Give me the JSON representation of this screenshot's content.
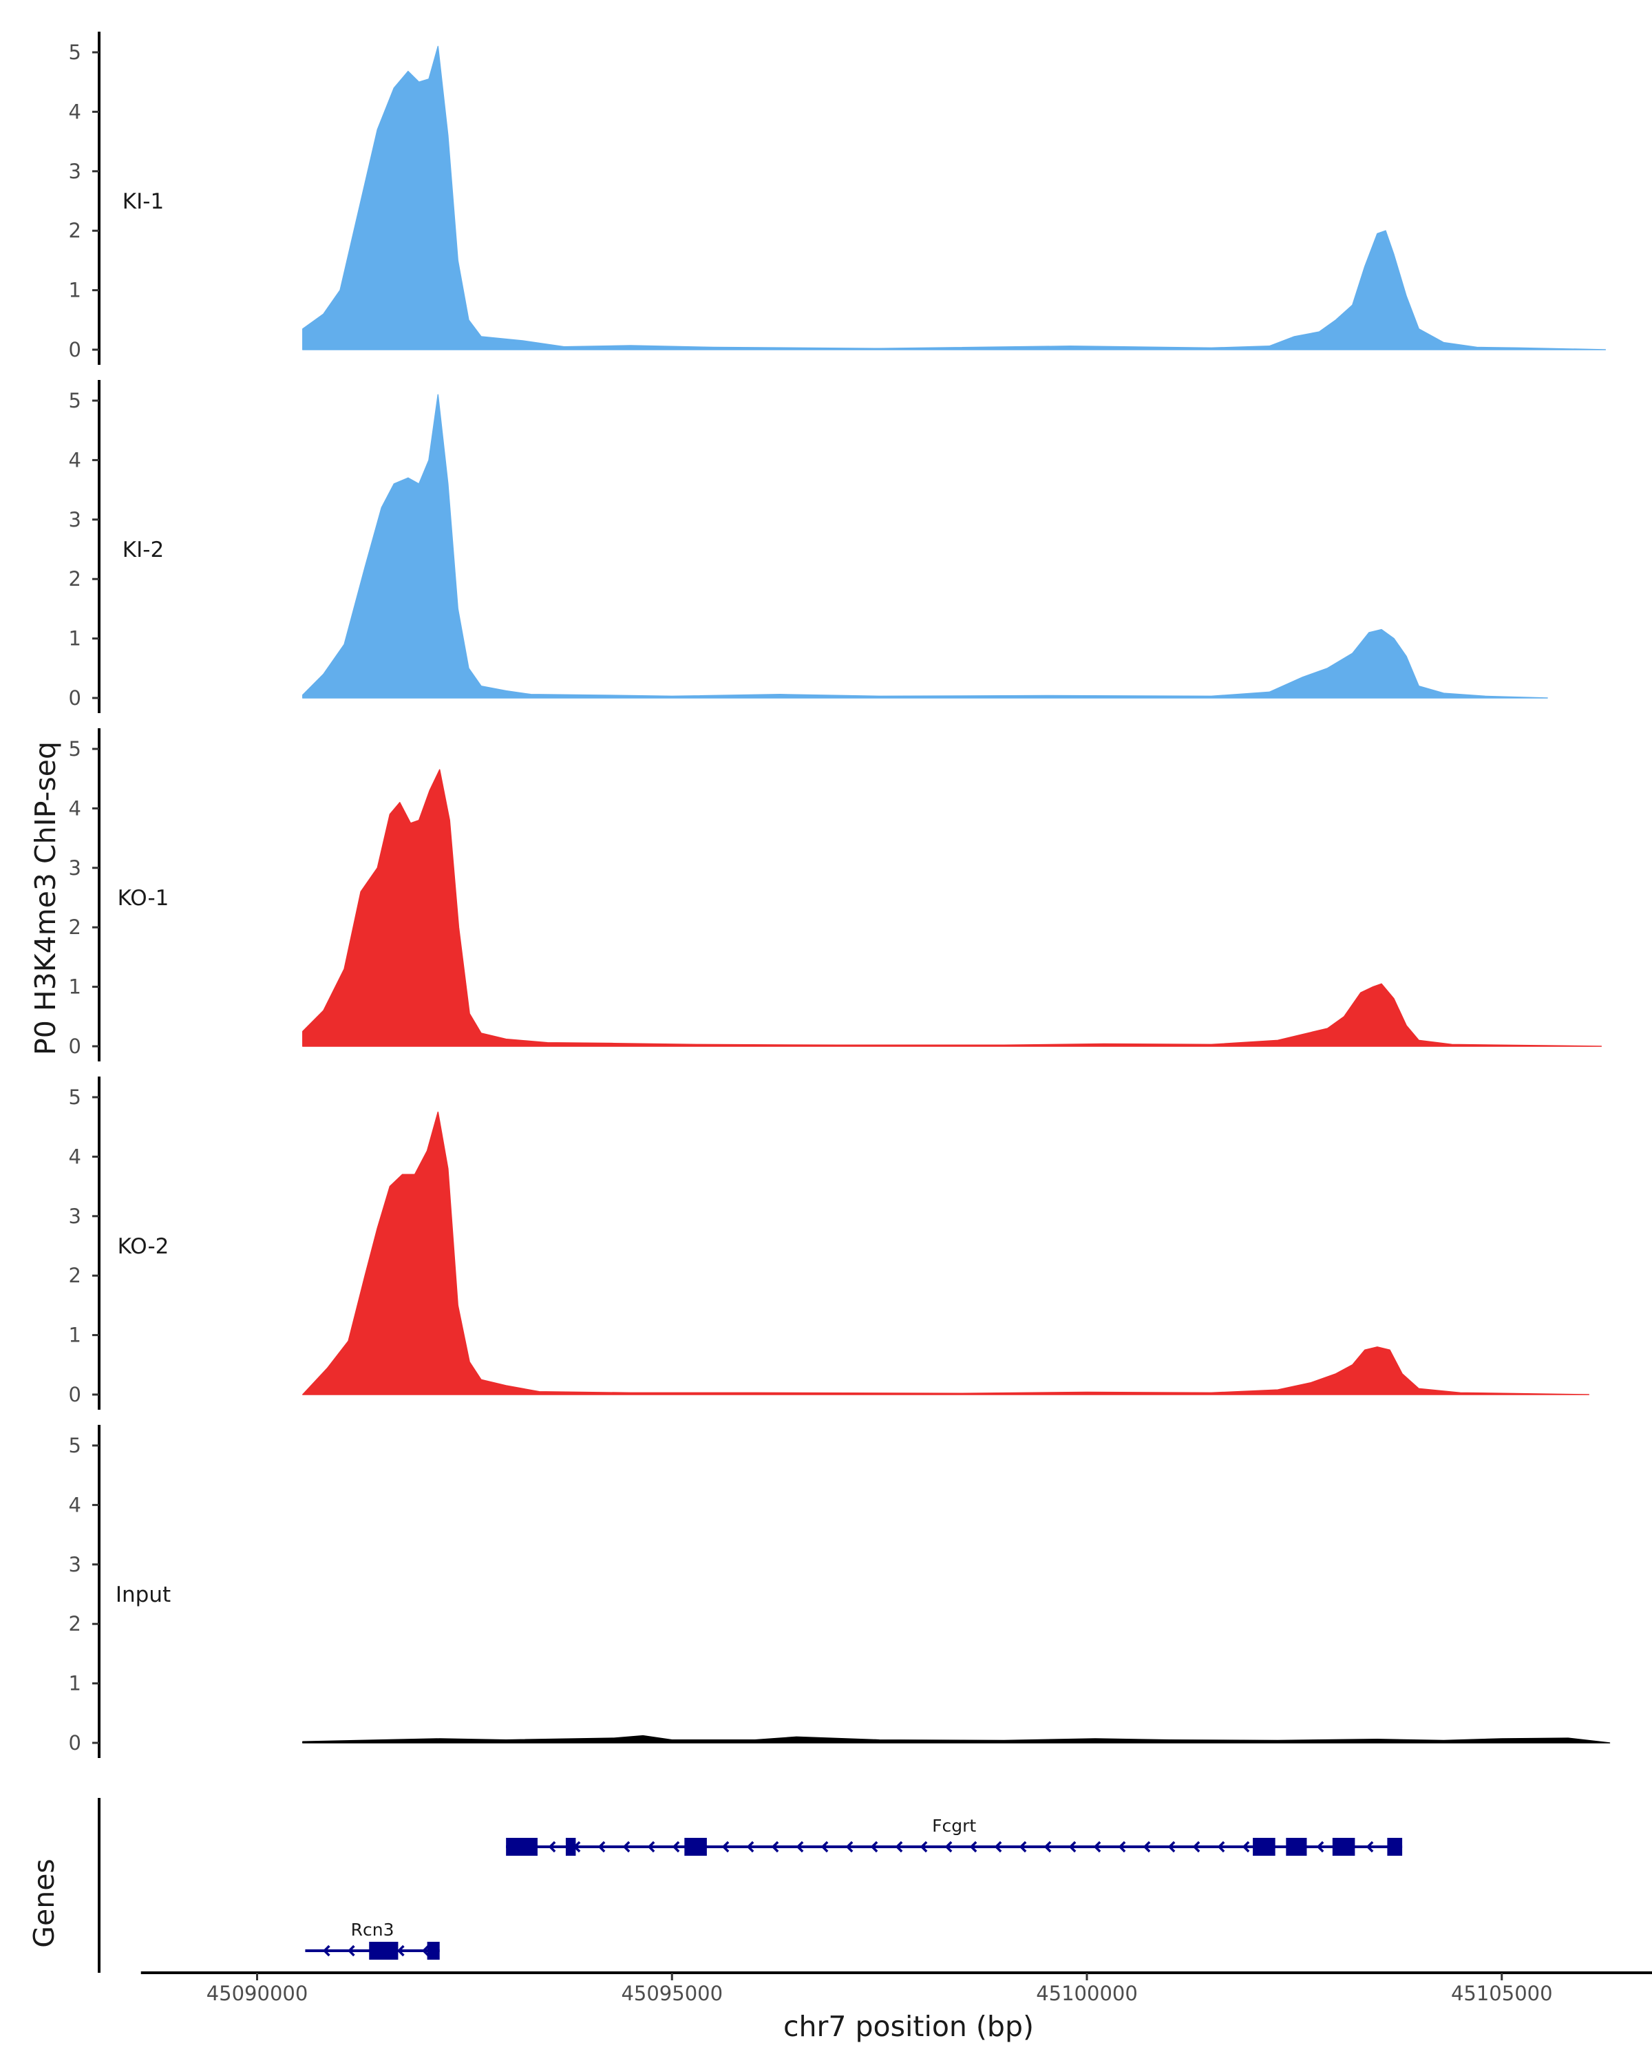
{
  "chart_data": {
    "type": "area",
    "ylabel": "P0 H3K4me3 ChIP-seq",
    "xlabel": "chr7 position (bp)",
    "genes_label": "Genes",
    "xlim": [
      45088600,
      45107000
    ],
    "ylim": [
      0,
      5.35
    ],
    "x_ticks": [
      45090000,
      45095000,
      45100000,
      45105000
    ],
    "x_tick_labels": [
      "45090000",
      "45095000",
      "45100000",
      "45105000"
    ],
    "y_ticks": [
      0,
      1,
      2,
      3,
      4,
      5
    ],
    "y_tick_labels": [
      "0",
      "1",
      "2",
      "3",
      "4",
      "5"
    ],
    "colors": {
      "KI": "#62aeec",
      "KO": "#ec2c2c",
      "Input": "#000000",
      "gene": "#00008b",
      "axis": "#000000"
    },
    "tracks": [
      {
        "name": "KI-1",
        "color": "#62aeec",
        "x_range": [
          45090550,
          45106250
        ],
        "points": [
          [
            45090550,
            0.35
          ],
          [
            45090800,
            0.6
          ],
          [
            45091000,
            1.0
          ],
          [
            45091250,
            2.5
          ],
          [
            45091450,
            3.7
          ],
          [
            45091650,
            4.4
          ],
          [
            45091820,
            4.68
          ],
          [
            45091950,
            4.5
          ],
          [
            45092070,
            4.55
          ],
          [
            45092180,
            5.1
          ],
          [
            45092300,
            3.6
          ],
          [
            45092420,
            1.5
          ],
          [
            45092550,
            0.5
          ],
          [
            45092700,
            0.22
          ],
          [
            45093200,
            0.15
          ],
          [
            45093700,
            0.05
          ],
          [
            45094500,
            0.07
          ],
          [
            45095500,
            0.04
          ],
          [
            45097500,
            0.02
          ],
          [
            45099800,
            0.06
          ],
          [
            45101500,
            0.03
          ],
          [
            45102200,
            0.06
          ],
          [
            45102500,
            0.22
          ],
          [
            45102800,
            0.3
          ],
          [
            45103000,
            0.5
          ],
          [
            45103200,
            0.75
          ],
          [
            45103350,
            1.4
          ],
          [
            45103500,
            1.95
          ],
          [
            45103600,
            2.0
          ],
          [
            45103700,
            1.6
          ],
          [
            45103850,
            0.9
          ],
          [
            45104000,
            0.35
          ],
          [
            45104300,
            0.12
          ],
          [
            45104700,
            0.04
          ],
          [
            45105200,
            0.03
          ],
          [
            45106250,
            0.0
          ]
        ]
      },
      {
        "name": "KI-2",
        "color": "#62aeec",
        "x_range": [
          45090550,
          45105550
        ],
        "points": [
          [
            45090550,
            0.05
          ],
          [
            45090800,
            0.4
          ],
          [
            45091050,
            0.9
          ],
          [
            45091300,
            2.2
          ],
          [
            45091500,
            3.2
          ],
          [
            45091650,
            3.6
          ],
          [
            45091820,
            3.7
          ],
          [
            45091950,
            3.6
          ],
          [
            45092070,
            4.0
          ],
          [
            45092180,
            5.1
          ],
          [
            45092300,
            3.6
          ],
          [
            45092420,
            1.5
          ],
          [
            45092550,
            0.5
          ],
          [
            45092700,
            0.2
          ],
          [
            45093000,
            0.12
          ],
          [
            45093300,
            0.06
          ],
          [
            45094000,
            0.05
          ],
          [
            45095000,
            0.03
          ],
          [
            45096300,
            0.06
          ],
          [
            45097500,
            0.03
          ],
          [
            45099500,
            0.04
          ],
          [
            45101500,
            0.03
          ],
          [
            45102200,
            0.1
          ],
          [
            45102600,
            0.35
          ],
          [
            45102900,
            0.5
          ],
          [
            45103200,
            0.75
          ],
          [
            45103400,
            1.1
          ],
          [
            45103550,
            1.15
          ],
          [
            45103700,
            1.0
          ],
          [
            45103850,
            0.7
          ],
          [
            45104000,
            0.2
          ],
          [
            45104300,
            0.08
          ],
          [
            45104800,
            0.03
          ],
          [
            45105550,
            0.0
          ]
        ]
      },
      {
        "name": "KO-1",
        "color": "#ec2c2c",
        "x_range": [
          45090550,
          45106200
        ],
        "points": [
          [
            45090550,
            0.25
          ],
          [
            45090800,
            0.6
          ],
          [
            45091050,
            1.3
          ],
          [
            45091250,
            2.6
          ],
          [
            45091450,
            3.0
          ],
          [
            45091600,
            3.9
          ],
          [
            45091720,
            4.1
          ],
          [
            45091850,
            3.75
          ],
          [
            45091950,
            3.8
          ],
          [
            45092080,
            4.3
          ],
          [
            45092200,
            4.65
          ],
          [
            45092320,
            3.8
          ],
          [
            45092430,
            2.0
          ],
          [
            45092560,
            0.55
          ],
          [
            45092700,
            0.22
          ],
          [
            45093000,
            0.12
          ],
          [
            45093500,
            0.06
          ],
          [
            45094300,
            0.05
          ],
          [
            45095300,
            0.03
          ],
          [
            45097000,
            0.02
          ],
          [
            45099000,
            0.02
          ],
          [
            45100200,
            0.04
          ],
          [
            45101500,
            0.03
          ],
          [
            45102300,
            0.1
          ],
          [
            45102600,
            0.2
          ],
          [
            45102900,
            0.3
          ],
          [
            45103100,
            0.5
          ],
          [
            45103300,
            0.9
          ],
          [
            45103450,
            1.0
          ],
          [
            45103550,
            1.05
          ],
          [
            45103700,
            0.8
          ],
          [
            45103850,
            0.35
          ],
          [
            45104000,
            0.1
          ],
          [
            45104400,
            0.03
          ],
          [
            45106200,
            0.0
          ]
        ]
      },
      {
        "name": "KO-2",
        "color": "#ec2c2c",
        "x_range": [
          45090550,
          45106050
        ],
        "points": [
          [
            45090550,
            0.0
          ],
          [
            45090850,
            0.45
          ],
          [
            45091100,
            0.9
          ],
          [
            45091300,
            2.0
          ],
          [
            45091450,
            2.8
          ],
          [
            45091600,
            3.5
          ],
          [
            45091750,
            3.7
          ],
          [
            45091900,
            3.7
          ],
          [
            45092050,
            4.1
          ],
          [
            45092180,
            4.75
          ],
          [
            45092300,
            3.8
          ],
          [
            45092420,
            1.5
          ],
          [
            45092560,
            0.55
          ],
          [
            45092700,
            0.25
          ],
          [
            45093000,
            0.15
          ],
          [
            45093400,
            0.05
          ],
          [
            45094500,
            0.03
          ],
          [
            45096000,
            0.03
          ],
          [
            45098500,
            0.02
          ],
          [
            45100000,
            0.04
          ],
          [
            45101500,
            0.03
          ],
          [
            45102300,
            0.08
          ],
          [
            45102700,
            0.2
          ],
          [
            45103000,
            0.35
          ],
          [
            45103200,
            0.5
          ],
          [
            45103350,
            0.75
          ],
          [
            45103500,
            0.8
          ],
          [
            45103650,
            0.75
          ],
          [
            45103800,
            0.35
          ],
          [
            45104000,
            0.1
          ],
          [
            45104500,
            0.03
          ],
          [
            45106050,
            0.0
          ]
        ]
      },
      {
        "name": "Input",
        "color": "#000000",
        "x_range": [
          45090550,
          45106300
        ],
        "points": [
          [
            45090550,
            0.02
          ],
          [
            45091500,
            0.05
          ],
          [
            45092200,
            0.07
          ],
          [
            45093000,
            0.05
          ],
          [
            45094300,
            0.08
          ],
          [
            45094650,
            0.12
          ],
          [
            45095000,
            0.05
          ],
          [
            45096000,
            0.05
          ],
          [
            45096500,
            0.1
          ],
          [
            45097500,
            0.05
          ],
          [
            45099000,
            0.04
          ],
          [
            45100100,
            0.07
          ],
          [
            45101000,
            0.05
          ],
          [
            45102300,
            0.04
          ],
          [
            45103500,
            0.06
          ],
          [
            45104300,
            0.04
          ],
          [
            45105000,
            0.07
          ],
          [
            45105800,
            0.08
          ],
          [
            45106300,
            0.0
          ]
        ]
      }
    ],
    "genes": [
      {
        "name": "Fcgrt",
        "start": 45093000,
        "end": 45103800,
        "strand": "-",
        "exons": [
          [
            45093000,
            45093380
          ],
          [
            45093720,
            45093840
          ],
          [
            45095150,
            45095420
          ],
          [
            45102000,
            45102270
          ],
          [
            45102400,
            45102650
          ],
          [
            45102960,
            45103230
          ],
          [
            45103620,
            45103800
          ]
        ]
      },
      {
        "name": "Rcn3",
        "start": 45090580,
        "end": 45092200,
        "strand": "-",
        "exons": [
          [
            45091350,
            45091700
          ],
          [
            45092050,
            45092200
          ]
        ]
      }
    ]
  }
}
